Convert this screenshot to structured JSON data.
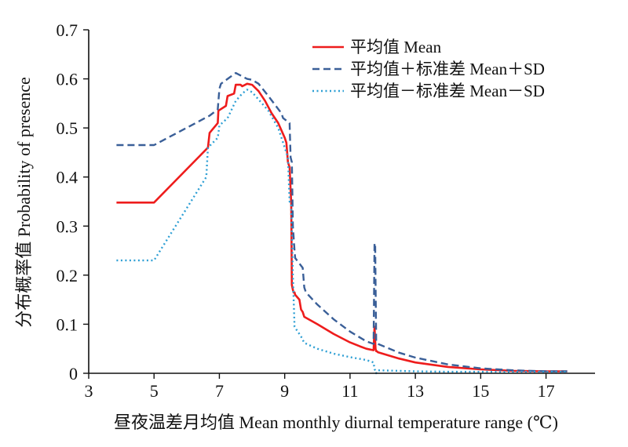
{
  "chart_data": {
    "type": "line",
    "title": "",
    "xlabel": "昼夜温差月均值  Mean monthly diurnal temperature range (℃)",
    "ylabel": "分布概率值 Probability of presence",
    "xlim": [
      3,
      18.5
    ],
    "ylim": [
      0,
      0.7
    ],
    "xticks": [
      "3",
      "5",
      "7",
      "9",
      "11",
      "13",
      "15",
      "17"
    ],
    "yticks": [
      "0",
      "0.1",
      "0.2",
      "0.3",
      "0.4",
      "0.5",
      "0.6",
      "0.7"
    ],
    "grid": false,
    "legend": "top-right",
    "series": [
      {
        "name": "平均值 Mean",
        "color": "#ee1c1c",
        "dash": "solid",
        "x": [
          3.85,
          5.0,
          6.65,
          6.7,
          6.95,
          6.97,
          7.2,
          7.25,
          7.45,
          7.5,
          7.65,
          7.7,
          7.85,
          8.0,
          8.2,
          8.4,
          8.6,
          8.8,
          9.0,
          9.05,
          9.1,
          9.15,
          9.2,
          9.22,
          9.25,
          9.27,
          9.3,
          9.32,
          9.45,
          9.5,
          9.55,
          9.6,
          10.0,
          10.5,
          11.0,
          11.3,
          11.5,
          11.72,
          11.75,
          11.78,
          11.8,
          11.82,
          11.85,
          12.5,
          13.0,
          14.0,
          15.0,
          16.0,
          17.0,
          17.65
        ],
        "y": [
          0.348,
          0.348,
          0.46,
          0.49,
          0.51,
          0.535,
          0.545,
          0.565,
          0.57,
          0.588,
          0.588,
          0.585,
          0.59,
          0.588,
          0.575,
          0.555,
          0.53,
          0.51,
          0.48,
          0.47,
          0.43,
          0.42,
          0.345,
          0.18,
          0.17,
          0.165,
          0.165,
          0.16,
          0.15,
          0.13,
          0.125,
          0.115,
          0.1,
          0.08,
          0.063,
          0.055,
          0.05,
          0.047,
          0.095,
          0.05,
          0.045,
          0.045,
          0.043,
          0.03,
          0.022,
          0.013,
          0.008,
          0.005,
          0.004,
          0.004
        ]
      },
      {
        "name": "平均值＋标准差 Mean＋SD",
        "color": "#3a5f98",
        "dash": "dashed",
        "x": [
          3.85,
          5.0,
          6.7,
          6.95,
          7.0,
          7.05,
          7.25,
          7.5,
          7.7,
          7.85,
          8.0,
          8.2,
          8.5,
          8.9,
          8.95,
          9.15,
          9.18,
          9.22,
          9.25,
          9.3,
          9.32,
          9.55,
          9.6,
          9.65,
          10.0,
          10.5,
          11.0,
          11.5,
          11.72,
          11.75,
          11.77,
          11.8,
          11.82,
          11.85,
          12.5,
          13.0,
          14.0,
          15.0,
          16.0,
          17.0,
          17.65
        ],
        "y": [
          0.465,
          0.465,
          0.525,
          0.538,
          0.58,
          0.59,
          0.6,
          0.612,
          0.605,
          0.6,
          0.598,
          0.59,
          0.565,
          0.53,
          0.52,
          0.51,
          0.44,
          0.43,
          0.3,
          0.25,
          0.235,
          0.215,
          0.175,
          0.165,
          0.14,
          0.11,
          0.085,
          0.065,
          0.06,
          0.265,
          0.265,
          0.065,
          0.063,
          0.06,
          0.042,
          0.032,
          0.018,
          0.01,
          0.006,
          0.004,
          0.004
        ]
      },
      {
        "name": "平均值－标准差 Mean－SD",
        "color": "#2e9fd4",
        "dash": "dotted",
        "x": [
          3.85,
          5.0,
          6.6,
          6.65,
          6.95,
          7.0,
          7.25,
          7.5,
          7.7,
          7.85,
          8.0,
          8.2,
          8.5,
          8.8,
          8.95,
          9.1,
          9.15,
          9.2,
          9.25,
          9.3,
          9.35,
          9.5,
          9.6,
          10.0,
          10.5,
          11.0,
          11.5,
          11.72,
          11.75,
          11.78,
          11.8,
          11.85,
          12.5,
          13.0,
          14.0,
          15.0,
          16.0,
          17.0,
          17.65
        ],
        "y": [
          0.23,
          0.23,
          0.4,
          0.46,
          0.48,
          0.505,
          0.52,
          0.555,
          0.57,
          0.578,
          0.573,
          0.558,
          0.535,
          0.5,
          0.47,
          0.44,
          0.35,
          0.345,
          0.2,
          0.095,
          0.09,
          0.075,
          0.062,
          0.05,
          0.04,
          0.033,
          0.027,
          0.022,
          0.008,
          0.006,
          0.0,
          0.006,
          0.005,
          0.004,
          0.003,
          0.003,
          0.003,
          0.003,
          0.003
        ]
      }
    ]
  }
}
